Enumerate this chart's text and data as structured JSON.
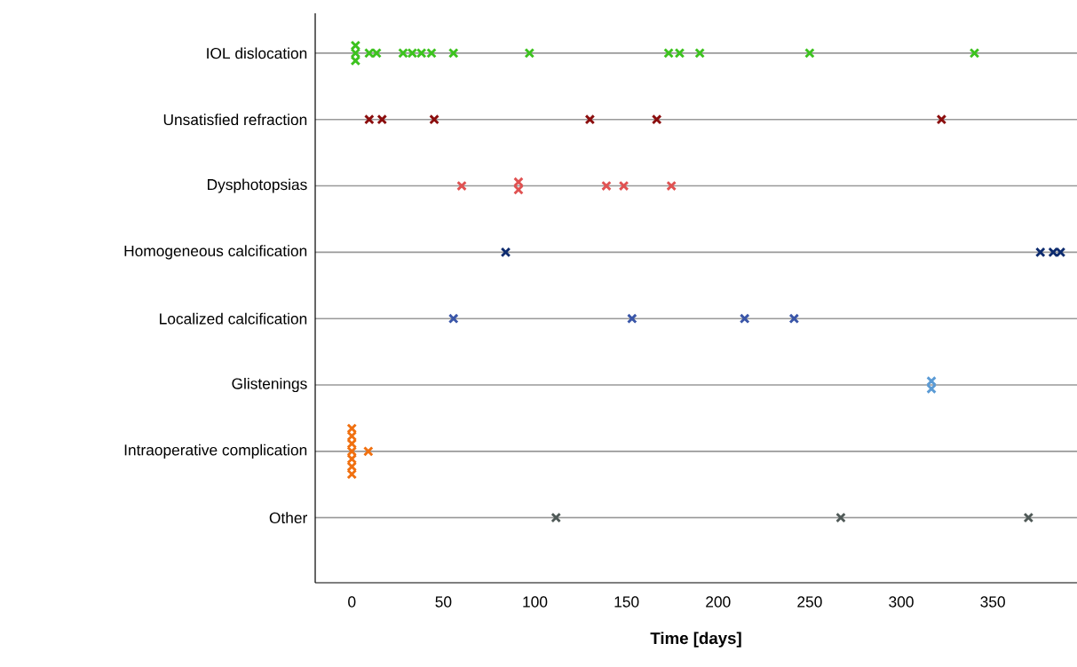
{
  "chart_data": {
    "type": "scatter",
    "orientation": "horizontal",
    "xlabel": "Time [days]",
    "categories": [
      "IOL dislocation",
      "Unsatisfied refraction",
      "Dysphotopsias",
      "Homogeneous calcification",
      "Localized calcification",
      "Glistenings",
      "Intraoperative complication",
      "Other"
    ],
    "series": [
      {
        "color": "#3cc21e",
        "x": [
          "IOL dislocation",
          "IOL dislocation",
          "IOL dislocation",
          "IOL dislocation",
          "IOL dislocation",
          "IOL dislocation",
          "IOL dislocation",
          "IOL dislocation",
          "IOL dislocation",
          "IOL dislocation",
          "IOL dislocation",
          "IOL dislocation",
          "IOL dislocation",
          "IOL dislocation",
          "IOL dislocation",
          "IOL dislocation"
        ],
        "values": [
          2,
          2,
          2,
          9.5,
          13.5,
          28,
          33,
          38,
          43.5,
          55.5,
          97,
          173,
          179,
          190,
          250,
          340
        ]
      },
      {
        "color": "#8b0e0e",
        "x": [
          "Unsatisfied refraction",
          "Unsatisfied refraction",
          "Unsatisfied refraction",
          "Unsatisfied refraction",
          "Unsatisfied refraction",
          "Unsatisfied refraction"
        ],
        "values": [
          9.5,
          16.5,
          45,
          130,
          166.5,
          322
        ]
      },
      {
        "color": "#e05252",
        "x": [
          "Dysphotopsias",
          "Dysphotopsias",
          "Dysphotopsias",
          "Dysphotopsias",
          "Dysphotopsias",
          "Dysphotopsias"
        ],
        "values": [
          60,
          91,
          91,
          139,
          148.5,
          174.5
        ]
      },
      {
        "color": "#0d2b6e",
        "x": [
          "Homogeneous calcification",
          "Homogeneous calcification",
          "Homogeneous calcification",
          "Homogeneous calcification"
        ],
        "values": [
          84,
          376,
          383,
          387
        ]
      },
      {
        "color": "#3a56a8",
        "x": [
          "Localized calcification",
          "Localized calcification",
          "Localized calcification",
          "Localized calcification"
        ],
        "values": [
          55.5,
          153,
          214.5,
          241.5
        ]
      },
      {
        "color": "#5b9bd5",
        "x": [
          "Glistenings",
          "Glistenings"
        ],
        "values": [
          316.5,
          316.5
        ]
      },
      {
        "color": "#f07010",
        "x": [
          "Intraoperative complication",
          "Intraoperative complication",
          "Intraoperative complication",
          "Intraoperative complication",
          "Intraoperative complication",
          "Intraoperative complication",
          "Intraoperative complication",
          "Intraoperative complication"
        ],
        "values": [
          0,
          0,
          0,
          0,
          0,
          0,
          0,
          9
        ]
      },
      {
        "color": "#505a58",
        "x": [
          "Other",
          "Other",
          "Other"
        ],
        "values": [
          111.5,
          267,
          369.5
        ]
      }
    ],
    "xlim": [
      -20,
      396
    ],
    "xticks": [
      0,
      50,
      100,
      150,
      200,
      250,
      300,
      350
    ],
    "grid": "y",
    "marker": "cross"
  }
}
